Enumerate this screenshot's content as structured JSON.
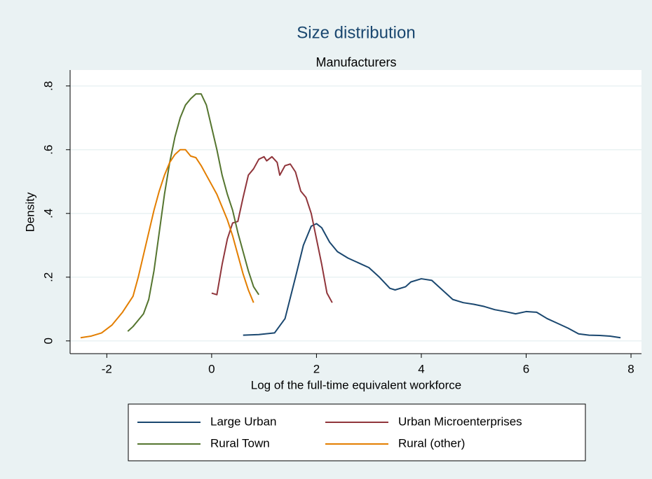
{
  "chart_data": {
    "type": "line",
    "title": "Size distribution",
    "subtitle": "Manufacturers",
    "x_label": "Log of the full-time equivalent workforce",
    "y_label": "Density",
    "xlim": [
      -2.7,
      8.2
    ],
    "xticks": [
      -2,
      0,
      2,
      4,
      6,
      8
    ],
    "ylim": [
      -0.04,
      0.85
    ],
    "yticks": [
      0,
      {
        "value": 0.2,
        "label": ".2"
      },
      {
        "value": 0.4,
        "label": ".4"
      },
      {
        "value": 0.6,
        "label": ".6"
      },
      {
        "value": 0.8,
        "label": ".8"
      }
    ],
    "grid": true,
    "legend": "bottom",
    "series": [
      {
        "name": "Large Urban",
        "color": "#1a476f",
        "x": [
          0.6,
          0.9,
          1.2,
          1.4,
          1.6,
          1.75,
          1.9,
          2.0,
          2.1,
          2.25,
          2.4,
          2.6,
          2.8,
          3.0,
          3.2,
          3.4,
          3.5,
          3.7,
          3.8,
          4.0,
          4.2,
          4.4,
          4.6,
          4.8,
          5.0,
          5.2,
          5.4,
          5.6,
          5.8,
          6.0,
          6.2,
          6.4,
          6.6,
          6.8,
          7.0,
          7.2,
          7.4,
          7.6,
          7.8
        ],
        "values": [
          0.018,
          0.02,
          0.025,
          0.07,
          0.2,
          0.3,
          0.36,
          0.368,
          0.355,
          0.31,
          0.28,
          0.26,
          0.245,
          0.23,
          0.2,
          0.165,
          0.16,
          0.17,
          0.185,
          0.195,
          0.19,
          0.16,
          0.13,
          0.12,
          0.115,
          0.108,
          0.098,
          0.092,
          0.085,
          0.092,
          0.09,
          0.07,
          0.055,
          0.04,
          0.022,
          0.018,
          0.017,
          0.015,
          0.01
        ]
      },
      {
        "name": "Urban Microenterprises",
        "color": "#90353b",
        "x": [
          0.0,
          0.1,
          0.2,
          0.3,
          0.4,
          0.5,
          0.6,
          0.7,
          0.8,
          0.9,
          1.0,
          1.05,
          1.15,
          1.25,
          1.3,
          1.4,
          1.5,
          1.6,
          1.7,
          1.8,
          1.9,
          2.0,
          2.1,
          2.2,
          2.3
        ],
        "values": [
          0.15,
          0.145,
          0.24,
          0.32,
          0.37,
          0.375,
          0.45,
          0.52,
          0.54,
          0.57,
          0.578,
          0.565,
          0.578,
          0.56,
          0.52,
          0.55,
          0.555,
          0.53,
          0.47,
          0.45,
          0.4,
          0.32,
          0.24,
          0.15,
          0.12
        ]
      },
      {
        "name": "Rural Town",
        "color": "#55752f",
        "x": [
          -1.6,
          -1.5,
          -1.4,
          -1.3,
          -1.2,
          -1.1,
          -1.0,
          -0.9,
          -0.8,
          -0.7,
          -0.6,
          -0.5,
          -0.4,
          -0.3,
          -0.2,
          -0.1,
          0.0,
          0.1,
          0.2,
          0.3,
          0.4,
          0.5,
          0.6,
          0.7,
          0.8,
          0.9
        ],
        "values": [
          0.03,
          0.045,
          0.065,
          0.085,
          0.13,
          0.22,
          0.34,
          0.46,
          0.56,
          0.64,
          0.7,
          0.74,
          0.76,
          0.775,
          0.775,
          0.74,
          0.67,
          0.6,
          0.52,
          0.46,
          0.41,
          0.34,
          0.28,
          0.22,
          0.17,
          0.145
        ]
      },
      {
        "name": "Rural (other)",
        "color": "#e37e00",
        "x": [
          -2.5,
          -2.3,
          -2.1,
          -1.9,
          -1.7,
          -1.5,
          -1.4,
          -1.3,
          -1.2,
          -1.1,
          -1.0,
          -0.9,
          -0.8,
          -0.7,
          -0.6,
          -0.5,
          -0.4,
          -0.3,
          -0.2,
          -0.1,
          0.0,
          0.1,
          0.2,
          0.3,
          0.4,
          0.5,
          0.6,
          0.7,
          0.8
        ],
        "values": [
          0.01,
          0.015,
          0.025,
          0.05,
          0.09,
          0.14,
          0.2,
          0.27,
          0.34,
          0.41,
          0.47,
          0.52,
          0.56,
          0.585,
          0.6,
          0.6,
          0.58,
          0.575,
          0.55,
          0.52,
          0.49,
          0.46,
          0.42,
          0.38,
          0.33,
          0.27,
          0.21,
          0.16,
          0.12
        ]
      }
    ]
  }
}
